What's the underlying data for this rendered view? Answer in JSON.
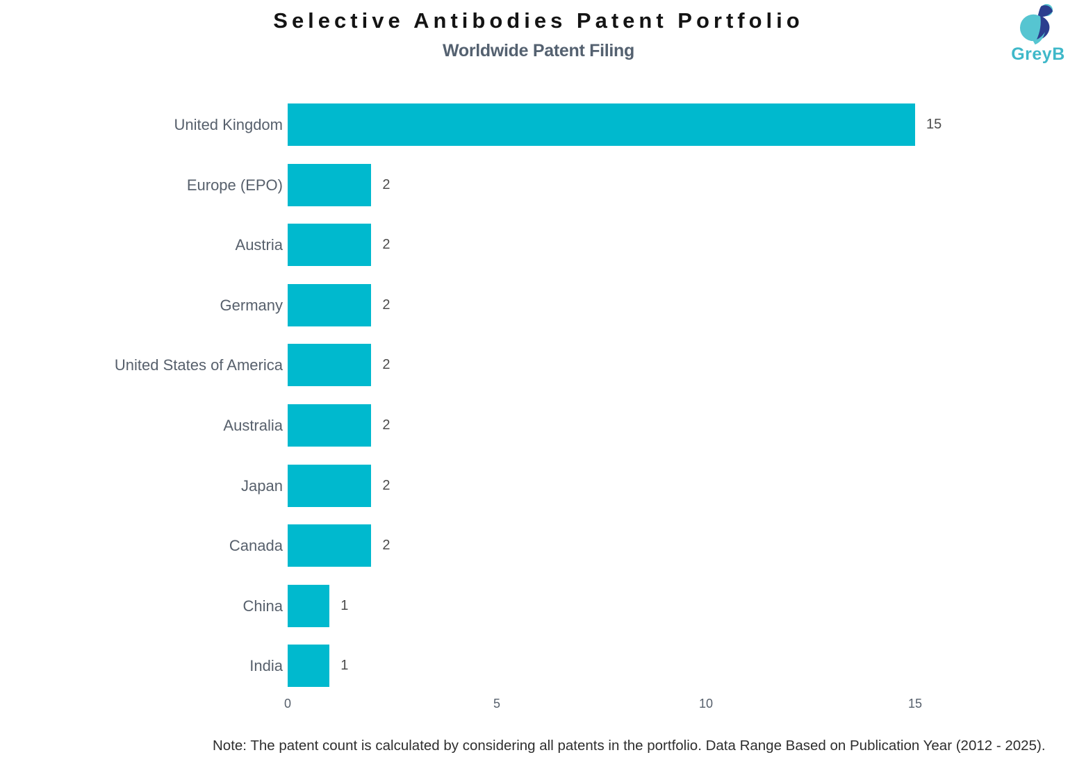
{
  "header": {
    "title": "Selective Antibodies Patent Portfolio",
    "subtitle": "Worldwide Patent Filing"
  },
  "logo": {
    "wordmark": "GreyB",
    "teal": "#56C5D1",
    "dark_blue": "#2C3E8E",
    "wordmark_color": "#3FB8C9"
  },
  "chart_data": {
    "type": "bar",
    "orientation": "horizontal",
    "title": "Selective Antibodies Patent Portfolio",
    "subtitle": "Worldwide Patent Filing",
    "categories": [
      "United Kingdom",
      "Europe (EPO)",
      "Austria",
      "Germany",
      "United States of America",
      "Australia",
      "Japan",
      "Canada",
      "China",
      "India"
    ],
    "values": [
      15,
      2,
      2,
      2,
      2,
      2,
      2,
      2,
      1,
      1
    ],
    "xlabel": "",
    "ylabel": "",
    "xlim": [
      0,
      15
    ],
    "xticks": [
      0,
      5,
      10,
      15
    ],
    "grid": false,
    "legend": false,
    "bar_color": "#00B9CE",
    "value_labels_shown": true
  },
  "note": "Note: The patent count is calculated by considering all patents in the portfolio. Data Range Based on Publication Year (2012 - 2025)."
}
